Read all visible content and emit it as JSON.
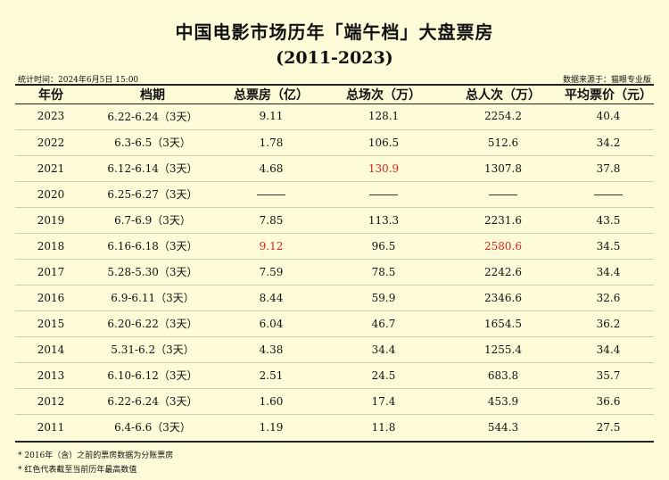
{
  "title": "中国电影市场历年「端午档」大盘票房",
  "subtitle": "(2011-2023)",
  "meta": {
    "stat_time": "统计时间：2024年6月5日 15:00",
    "source": "数据来源于：猫眼专业版"
  },
  "table": {
    "headers": [
      "年份",
      "档期",
      "总票房（亿）",
      "总场次（万）",
      "总人次（万）",
      "平均票价（元）"
    ],
    "rows": [
      [
        "2023",
        "6.22-6.24（3天）",
        "9.11",
        "128.1",
        "2254.2",
        "40.4"
      ],
      [
        "2022",
        "6.3-6.5（3天）",
        "1.78",
        "106.5",
        "512.6",
        "34.2"
      ],
      [
        "2021",
        "6.12-6.14（3天）",
        "4.68",
        "130.9",
        "1307.8",
        "37.8"
      ],
      [
        "2020",
        "6.25-6.27（3天）",
        "",
        "",
        "",
        ""
      ],
      [
        "2019",
        "6.7-6.9（3天）",
        "7.85",
        "113.3",
        "2231.6",
        "43.5"
      ],
      [
        "2018",
        "6.16-6.18（3天）",
        "9.12",
        "96.5",
        "2580.6",
        "34.5"
      ],
      [
        "2017",
        "5.28-5.30（3天）",
        "7.59",
        "78.5",
        "2242.6",
        "34.4"
      ],
      [
        "2016",
        "6.9-6.11（3天）",
        "8.44",
        "59.9",
        "2346.6",
        "32.6"
      ],
      [
        "2015",
        "6.20-6.22（3天）",
        "6.04",
        "46.7",
        "1654.5",
        "36.2"
      ],
      [
        "2014",
        "5.31-6.2（3天）",
        "4.38",
        "34.4",
        "1255.4",
        "34.4"
      ],
      [
        "2013",
        "6.10-6.12（3天）",
        "2.51",
        "24.5",
        "683.8",
        "35.7"
      ],
      [
        "2012",
        "6.22-6.24（3天）",
        "1.60",
        "17.4",
        "453.9",
        "36.6"
      ],
      [
        "2011",
        "6.4-6.6（3天）",
        "1.19",
        "11.8",
        "544.3",
        "27.5"
      ]
    ],
    "highlights": [
      {
        "row": 2,
        "col": 3
      },
      {
        "row": 5,
        "col": 2
      },
      {
        "row": 5,
        "col": 4
      }
    ],
    "highlight_color": "#e0221a"
  },
  "footnotes": [
    "* 2016年（含）之前的票房数据为分账票房",
    "* 红色代表截至当前历年最高数值"
  ]
}
